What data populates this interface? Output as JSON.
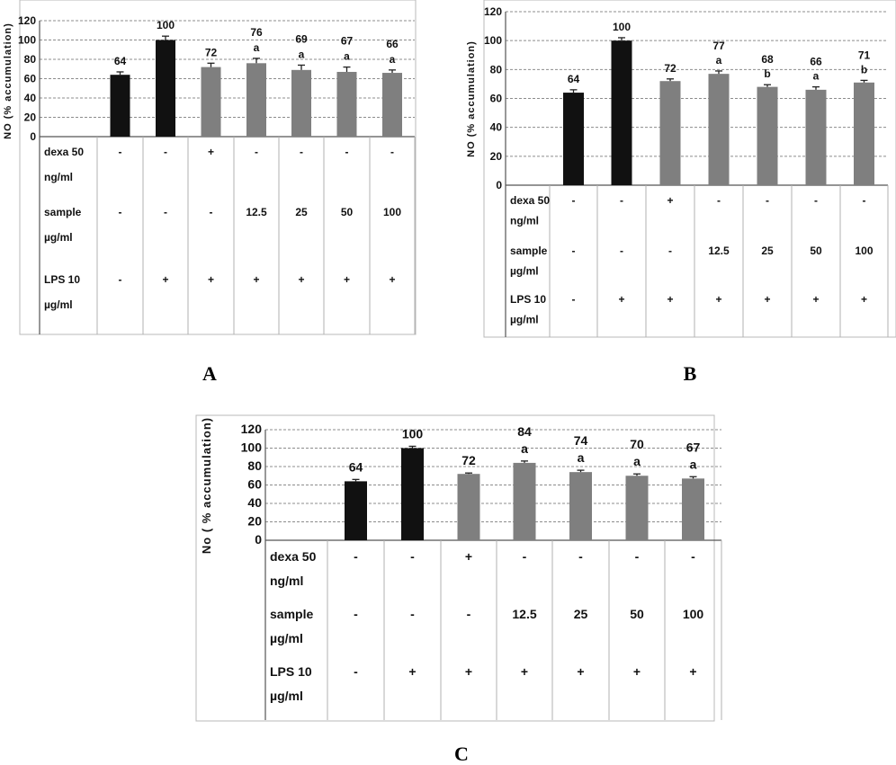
{
  "chart_data": [
    {
      "panel": "A",
      "type": "bar",
      "ylabel": "NO (% accumulation)",
      "ylim": [
        0,
        120
      ],
      "yticks": [
        0,
        20,
        40,
        60,
        80,
        100,
        120
      ],
      "grid": true,
      "values": [
        64,
        100,
        72,
        76,
        69,
        67,
        66
      ],
      "value_labels": [
        "64",
        "100",
        "72",
        "76",
        "69",
        "67",
        "66"
      ],
      "errors": [
        3,
        4,
        4,
        5,
        5,
        5,
        3
      ],
      "significance": [
        "",
        "",
        "",
        "a",
        "a",
        "a",
        "a"
      ],
      "bar_colors": [
        "#111111",
        "#111111",
        "#7f7f7f",
        "#7f7f7f",
        "#7f7f7f",
        "#7f7f7f",
        "#7f7f7f"
      ],
      "table": {
        "rows": [
          {
            "label": [
              "dexa 50",
              "ng/ml"
            ],
            "cells": [
              "-",
              "-",
              "+",
              "-",
              "-",
              "-",
              "-"
            ]
          },
          {
            "label": [
              "sample",
              "µg/ml"
            ],
            "cells": [
              "-",
              "-",
              "-",
              "12.5",
              "25",
              "50",
              "100"
            ]
          },
          {
            "label": [
              "LPS 10",
              "µg/ml"
            ],
            "cells": [
              "-",
              "+",
              "+",
              "+",
              "+",
              "+",
              "+"
            ]
          }
        ]
      }
    },
    {
      "panel": "B",
      "type": "bar",
      "ylabel": "NO (% accumulation)",
      "ylim": [
        0,
        120
      ],
      "yticks": [
        0,
        20,
        40,
        60,
        80,
        100,
        120
      ],
      "grid": true,
      "values": [
        64,
        100,
        72,
        77,
        68,
        66,
        71
      ],
      "value_labels": [
        "64",
        "100",
        "72",
        "77",
        "68",
        "66",
        "71"
      ],
      "errors": [
        2,
        2,
        1.5,
        2,
        1.5,
        2,
        1.5
      ],
      "significance": [
        "",
        "",
        "",
        "a",
        "b",
        "a",
        "b"
      ],
      "bar_colors": [
        "#111111",
        "#111111",
        "#7f7f7f",
        "#7f7f7f",
        "#7f7f7f",
        "#7f7f7f",
        "#7f7f7f"
      ],
      "table": {
        "rows": [
          {
            "label": [
              "dexa 50",
              "ng/ml"
            ],
            "cells": [
              "-",
              "-",
              "+",
              "-",
              "-",
              "-",
              "-"
            ]
          },
          {
            "label": [
              "sample",
              "µg/ml"
            ],
            "cells": [
              "-",
              "-",
              "-",
              "12.5",
              "25",
              "50",
              "100"
            ]
          },
          {
            "label": [
              "LPS 10",
              "µg/ml"
            ],
            "cells": [
              "-",
              "+",
              "+",
              "+",
              "+",
              "+",
              "+"
            ]
          }
        ]
      }
    },
    {
      "panel": "C",
      "type": "bar",
      "ylabel": "No ( % accumulation)",
      "ylim": [
        0,
        120
      ],
      "yticks": [
        0,
        20,
        40,
        60,
        80,
        100,
        120
      ],
      "grid": true,
      "values": [
        64,
        100,
        72,
        84,
        74,
        70,
        67
      ],
      "value_labels": [
        "64",
        "100",
        "72",
        "84",
        "74",
        "70",
        "67"
      ],
      "errors": [
        2,
        2,
        1,
        2,
        2,
        2,
        2
      ],
      "significance": [
        "",
        "",
        "",
        "a",
        "a",
        "a",
        "a"
      ],
      "bar_colors": [
        "#111111",
        "#111111",
        "#7f7f7f",
        "#7f7f7f",
        "#7f7f7f",
        "#7f7f7f",
        "#7f7f7f"
      ],
      "table": {
        "rows": [
          {
            "label": [
              "dexa 50",
              "ng/ml"
            ],
            "cells": [
              "-",
              "-",
              "+",
              "-",
              "-",
              "-",
              "-"
            ]
          },
          {
            "label": [
              "sample",
              "µg/ml"
            ],
            "cells": [
              "-",
              "-",
              "-",
              "12.5",
              "25",
              "50",
              "100"
            ]
          },
          {
            "label": [
              "LPS 10",
              "µg/ml"
            ],
            "cells": [
              "-",
              "+",
              "+",
              "+",
              "+",
              "+",
              "+"
            ]
          }
        ]
      }
    }
  ],
  "panel_letters": {
    "a": "A",
    "b": "B",
    "c": "C"
  }
}
